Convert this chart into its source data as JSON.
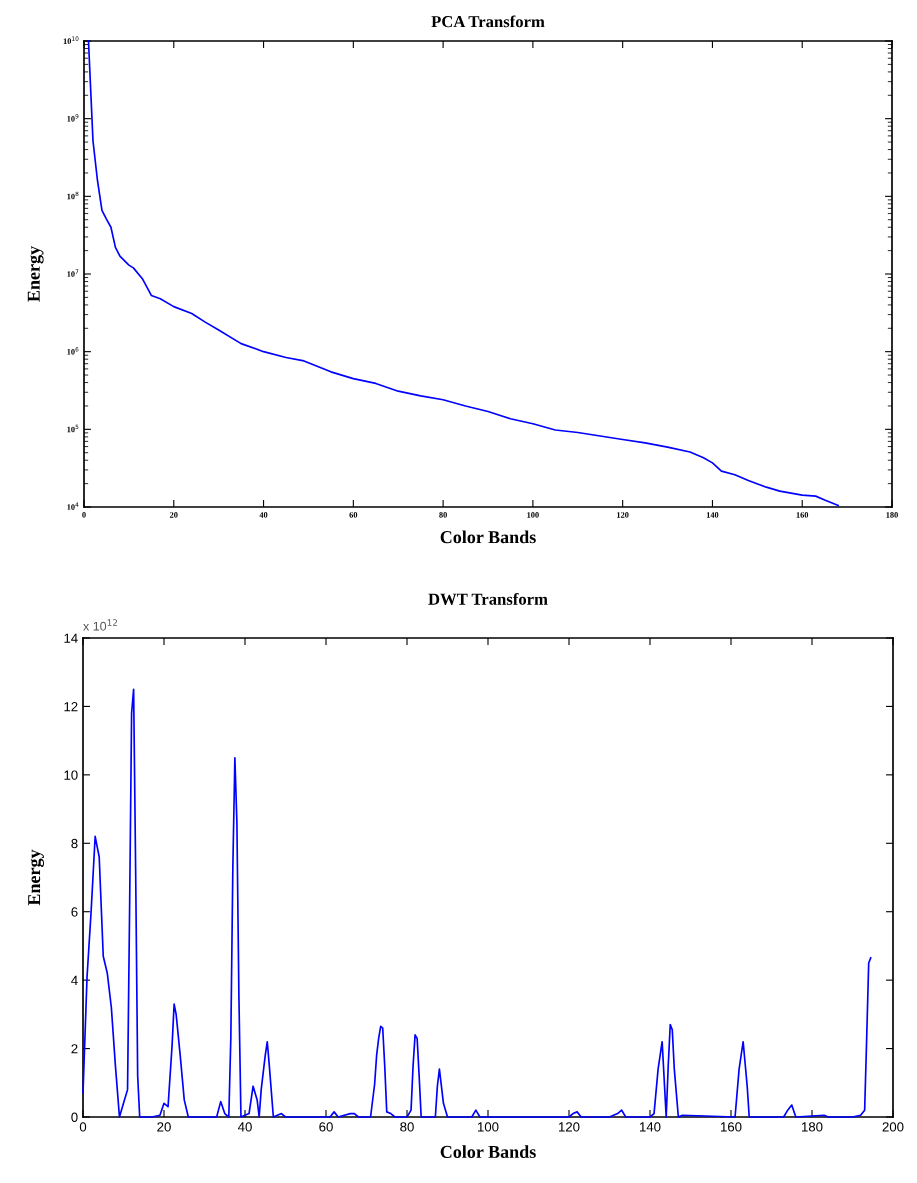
{
  "chart_data": [
    {
      "type": "line",
      "title": "PCA Transform",
      "xlabel": "Color Bands",
      "ylabel": "Energy",
      "log": "y",
      "xlim": [
        0,
        180
      ],
      "xticks": [
        0,
        20,
        40,
        60,
        80,
        100,
        120,
        140,
        160,
        180
      ],
      "ylim": [
        10000,
        10000000000
      ],
      "yticks": [
        {
          "value": 10000,
          "label": "10$^{4}$"
        },
        {
          "value": 100000,
          "label": "10$^{5}$"
        },
        {
          "value": 1000000,
          "label": "10$^{6}$"
        },
        {
          "value": 10000000,
          "label": "10$^{7}$"
        },
        {
          "value": 100000000,
          "label": "10$^{8}$"
        },
        {
          "value": 1000000000,
          "label": "10$^{9}$"
        },
        {
          "value": 10000000000,
          "label": "10$^{10}$"
        }
      ],
      "series": [
        {
          "color": "#0000ff",
          "x": [
            1,
            2,
            3,
            4,
            5,
            6,
            7,
            8,
            10,
            11,
            13,
            15,
            17,
            20,
            24,
            27,
            30,
            35,
            40,
            45,
            49,
            55,
            60,
            65,
            70,
            75,
            80,
            85,
            90,
            95,
            100,
            105,
            110,
            115,
            120,
            125,
            130,
            135,
            138,
            140,
            142,
            145,
            148,
            152,
            155,
            160,
            163,
            165,
            168
          ],
          "values": [
            10000000000,
            520000000,
            160000000,
            66000000,
            51000000,
            40000000,
            22000000,
            17000000,
            13000000,
            12000000,
            8700000,
            5300000,
            4800000,
            3800000,
            3100000,
            2400000,
            1900000,
            1270000,
            1000000,
            840000,
            760000,
            550000,
            450000,
            390000,
            310000,
            270000,
            240000,
            200000,
            170000,
            137000,
            118000,
            98000,
            91000,
            82000,
            74000,
            67000,
            59000,
            51000,
            43000,
            37000,
            29000,
            26000,
            22000,
            18000,
            16000,
            14200,
            13800,
            12300,
            10500
          ]
        }
      ]
    },
    {
      "type": "line",
      "title": "DWT Transform",
      "xlabel": "Color Bands",
      "ylabel": "Energy",
      "annotations": [
        "x 10$^{12}$"
      ],
      "xlim": [
        0,
        200
      ],
      "xticks": [
        0,
        20,
        40,
        60,
        80,
        100,
        120,
        140,
        160,
        180,
        200
      ],
      "ylim": [
        0,
        14
      ],
      "yticks": [
        0,
        2,
        4,
        6,
        8,
        10,
        12,
        14
      ],
      "series": [
        {
          "color": "#0000ff",
          "x": [
            0,
            1,
            2,
            3,
            4,
            5,
            6,
            7,
            8,
            9,
            10,
            11,
            11.5,
            12,
            12.5,
            13,
            13.5,
            14,
            17,
            19,
            20,
            21,
            22,
            22.5,
            23,
            24,
            25,
            26,
            33,
            34,
            35,
            36,
            36.5,
            37,
            37.5,
            38,
            38.5,
            39,
            41,
            42,
            43,
            43.5,
            44,
            45,
            45.5,
            46,
            47,
            49,
            50,
            61,
            62,
            63,
            66,
            67,
            68,
            71,
            72,
            72.5,
            73,
            73.5,
            74,
            74.5,
            75,
            76,
            77,
            80,
            81,
            81.5,
            82,
            82.5,
            83,
            83.5,
            87,
            87.5,
            88,
            89,
            90,
            96,
            97,
            98,
            120,
            121,
            122,
            123,
            130,
            132,
            133,
            134,
            140,
            141,
            142,
            143,
            144,
            144.5,
            145,
            145.5,
            146,
            147,
            148,
            161,
            162,
            163,
            164,
            164.5,
            173,
            174,
            175,
            176,
            183,
            184,
            190,
            192,
            193,
            193.5,
            194,
            194.5
          ],
          "values": [
            0.7,
            4.1,
            6.0,
            8.2,
            7.6,
            4.7,
            4.2,
            3.2,
            1.5,
            0,
            0.4,
            0.8,
            6.0,
            11.8,
            12.5,
            7.2,
            1.2,
            0,
            0,
            0.05,
            0.4,
            0.3,
            2.1,
            3.3,
            3.0,
            1.8,
            0.5,
            0,
            0,
            0.45,
            0.1,
            0,
            2.3,
            7.3,
            10.5,
            8.6,
            3.5,
            0,
            0.1,
            0.9,
            0.5,
            0,
            0.8,
            1.8,
            2.2,
            1.5,
            0,
            0.1,
            0,
            0,
            0.15,
            0,
            0.1,
            0.1,
            0,
            0,
            0.95,
            1.8,
            2.3,
            2.65,
            2.6,
            1.5,
            0.15,
            0.1,
            0,
            0,
            0.2,
            1.5,
            2.4,
            2.3,
            1.2,
            0,
            0,
            0.9,
            1.4,
            0.4,
            0,
            0,
            0.2,
            0,
            0,
            0.1,
            0.15,
            0,
            0,
            0.1,
            0.2,
            0,
            0,
            0.1,
            1.4,
            2.2,
            0,
            1.5,
            2.7,
            2.55,
            1.4,
            0,
            0.05,
            0,
            1.4,
            2.2,
            0.9,
            0,
            0,
            0.2,
            0.35,
            0,
            0.05,
            0,
            0,
            0.05,
            0.2,
            2.3,
            4.5,
            4.65
          ]
        }
      ]
    }
  ]
}
